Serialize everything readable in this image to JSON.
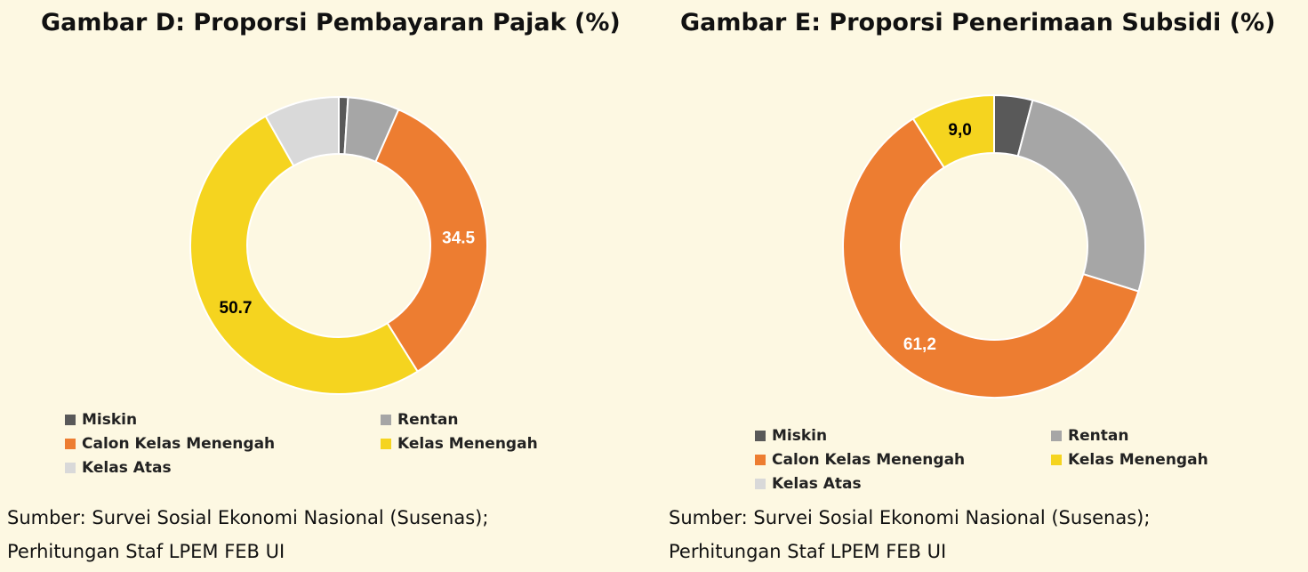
{
  "chart_data": [
    {
      "type": "pie",
      "title": "Gambar D: Proporsi Pembayaran Pajak (%)",
      "categories": [
        "Miskin",
        "Rentan",
        "Calon Kelas Menengah",
        "Kelas Menengah",
        "Kelas Atas"
      ],
      "values": [
        1.0,
        5.6,
        34.5,
        50.7,
        8.2
      ],
      "data_labels": [
        null,
        null,
        "34.5",
        "50.7",
        null
      ],
      "colors": [
        "#595959",
        "#a6a6a6",
        "#ed7d31",
        "#f5d41f",
        "#d9d9d9"
      ],
      "legend": "bottom",
      "source": [
        "Sumber: Survei Sosial Ekonomi Nasional (Susenas);",
        "Perhitungan Staf LPEM FEB UI"
      ]
    },
    {
      "type": "pie",
      "title": "Gambar E: Proporsi Penerimaan Subsidi (%)",
      "categories": [
        "Miskin",
        "Rentan",
        "Calon Kelas Menengah",
        "Kelas Menengah",
        "Kelas Atas"
      ],
      "values": [
        4.1,
        25.7,
        61.2,
        9.0,
        0.0
      ],
      "data_labels": [
        null,
        null,
        "61,2",
        "9,0",
        null
      ],
      "colors": [
        "#595959",
        "#a6a6a6",
        "#ed7d31",
        "#f5d41f",
        "#d9d9d9"
      ],
      "legend": "bottom",
      "source": [
        "Sumber: Survei Sosial Ekonomi Nasional (Susenas);",
        "Perhitungan Staf LPEM FEB UI"
      ]
    }
  ]
}
